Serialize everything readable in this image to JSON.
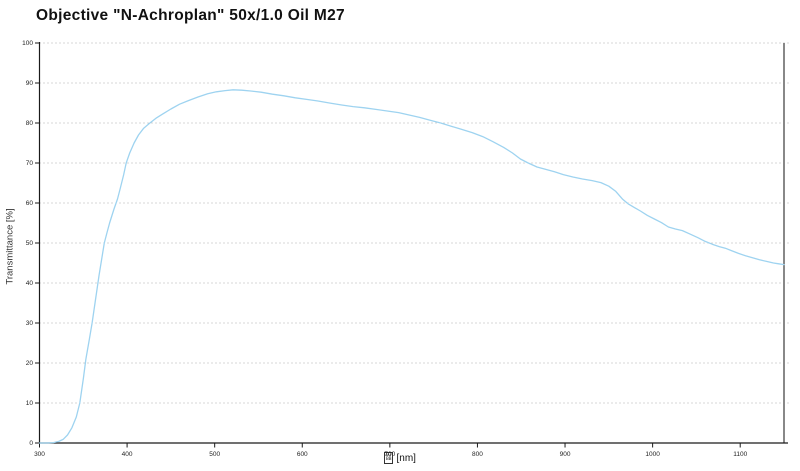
{
  "chart_data": {
    "type": "line",
    "title": "Objective \"N-Achroplan\" 50x/1.0 Oil M27",
    "ylabel": "Transmittance [%]",
    "xlabel_glyph_hex": "03BB",
    "xlabel_unit": "[nm]",
    "xlim": [
      300,
      1150
    ],
    "ylim": [
      0,
      100
    ],
    "x_ticks": [
      300,
      400,
      500,
      600,
      700,
      800,
      900,
      1000,
      1100
    ],
    "y_ticks": [
      0,
      10,
      20,
      30,
      40,
      50,
      60,
      70,
      80,
      90,
      100
    ],
    "grid": "horizontal-dotted",
    "legend": "none",
    "colors": {
      "line": "#9ed3f0",
      "axis": "#1a1a1a",
      "right_border": "#555555",
      "gridline": "#b0b0b0",
      "tick_text": "#222222"
    },
    "series": [
      {
        "name": "Transmittance",
        "points": [
          [
            300,
            0
          ],
          [
            308,
            0
          ],
          [
            316,
            0.1
          ],
          [
            322,
            0.4
          ],
          [
            327,
            0.9
          ],
          [
            332,
            2
          ],
          [
            337,
            3.8
          ],
          [
            342,
            6.5
          ],
          [
            346,
            10
          ],
          [
            350,
            16
          ],
          [
            353,
            21
          ],
          [
            357,
            26
          ],
          [
            360,
            30
          ],
          [
            364,
            36
          ],
          [
            368,
            42
          ],
          [
            371,
            46
          ],
          [
            374,
            50
          ],
          [
            377,
            52.5
          ],
          [
            380,
            55
          ],
          [
            385,
            58.5
          ],
          [
            389,
            61
          ],
          [
            392,
            63.5
          ],
          [
            396,
            67
          ],
          [
            399,
            70
          ],
          [
            403,
            72.5
          ],
          [
            408,
            75
          ],
          [
            413,
            77
          ],
          [
            419,
            78.7
          ],
          [
            426,
            80
          ],
          [
            433,
            81.2
          ],
          [
            441,
            82.3
          ],
          [
            450,
            83.5
          ],
          [
            460,
            84.7
          ],
          [
            470,
            85.6
          ],
          [
            481,
            86.5
          ],
          [
            492,
            87.3
          ],
          [
            502,
            87.8
          ],
          [
            512,
            88.1
          ],
          [
            521,
            88.3
          ],
          [
            531,
            88.2
          ],
          [
            541,
            88
          ],
          [
            553,
            87.7
          ],
          [
            566,
            87.2
          ],
          [
            579,
            86.8
          ],
          [
            592,
            86.3
          ],
          [
            605,
            85.9
          ],
          [
            618,
            85.5
          ],
          [
            631,
            85
          ],
          [
            645,
            84.5
          ],
          [
            658,
            84.1
          ],
          [
            671,
            83.8
          ],
          [
            684,
            83.4
          ],
          [
            697,
            83
          ],
          [
            710,
            82.6
          ],
          [
            722,
            82
          ],
          [
            734,
            81.4
          ],
          [
            746,
            80.7
          ],
          [
            758,
            80
          ],
          [
            770,
            79.2
          ],
          [
            782,
            78.4
          ],
          [
            794,
            77.6
          ],
          [
            806,
            76.6
          ],
          [
            818,
            75.3
          ],
          [
            830,
            73.9
          ],
          [
            840,
            72.5
          ],
          [
            849,
            71
          ],
          [
            858,
            70
          ],
          [
            868,
            69
          ],
          [
            878,
            68.4
          ],
          [
            888,
            67.8
          ],
          [
            898,
            67.1
          ],
          [
            909,
            66.5
          ],
          [
            920,
            66
          ],
          [
            931,
            65.6
          ],
          [
            941,
            65.1
          ],
          [
            950,
            64.2
          ],
          [
            958,
            62.9
          ],
          [
            966,
            60.9
          ],
          [
            972,
            59.8
          ],
          [
            979,
            58.9
          ],
          [
            986,
            58
          ],
          [
            994,
            56.9
          ],
          [
            1002,
            56
          ],
          [
            1010,
            55.1
          ],
          [
            1018,
            54
          ],
          [
            1026,
            53.5
          ],
          [
            1034,
            53.1
          ],
          [
            1043,
            52.2
          ],
          [
            1052,
            51.3
          ],
          [
            1060,
            50.4
          ],
          [
            1068,
            49.7
          ],
          [
            1076,
            49.1
          ],
          [
            1083,
            48.7
          ],
          [
            1090,
            48.1
          ],
          [
            1098,
            47.4
          ],
          [
            1106,
            46.8
          ],
          [
            1114,
            46.3
          ],
          [
            1122,
            45.8
          ],
          [
            1130,
            45.4
          ],
          [
            1138,
            45
          ],
          [
            1144,
            44.8
          ],
          [
            1150,
            44.6
          ]
        ]
      }
    ]
  }
}
